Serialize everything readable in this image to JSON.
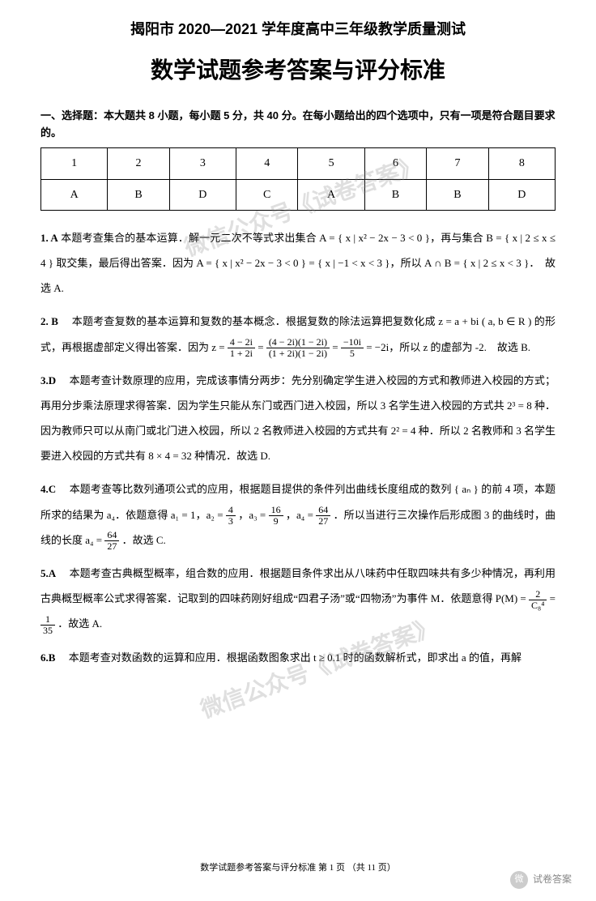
{
  "header": "揭阳市 2020—2021 学年度高中三年级教学质量测试",
  "title": "数学试题参考答案与评分标准",
  "section1_header": "一、选择题：本大题共 8 小题，每小题 5 分，共 40 分。在每小题给出的四个选项中，只有一项是符合题目要求的。",
  "answer_table": {
    "numbers": [
      "1",
      "2",
      "3",
      "4",
      "5",
      "6",
      "7",
      "8"
    ],
    "answers": [
      "A",
      "B",
      "D",
      "C",
      "A",
      "B",
      "B",
      "D"
    ]
  },
  "explanations": {
    "q1": {
      "num": "1. A",
      "body": "本题考查集合的基本运算．解一元二次不等式求出集合 A = { x | x² − 2x − 3 < 0 }，再与集合 B = { x | 2 ≤ x ≤ 4 } 取交集，最后得出答案．因为 A = { x | x² − 2x − 3 < 0 } = { x | −1 < x < 3 }，所以 A ∩ B = { x | 2 ≤ x < 3 }．　故选 A."
    },
    "q2": {
      "num": "2. B",
      "body_pre": "本题考查复数的基本运算和复数的基本概念．根据复数的除法运算把复数化成 z = a + bi ( a, b ∈ R ) 的形式，再根据虚部定义得出答案．因为 z = ",
      "frac1_num": "4 − 2i",
      "frac1_den": "1 + 2i",
      "eq1": " = ",
      "frac2_num": "(4 − 2i)(1 − 2i)",
      "frac2_den": "(1 + 2i)(1 − 2i)",
      "eq2": " = ",
      "frac3_num": "−10i",
      "frac3_den": "5",
      "body_post": " = −2i，所以 z 的虚部为 -2.　故选 B."
    },
    "q3": {
      "num": "3.D",
      "body": "本题考查计数原理的应用，完成该事情分两步：先分别确定学生进入校园的方式和教师进入校园的方式；再用分步乘法原理求得答案．因为学生只能从东门或西门进入校园，所以 3 名学生进入校园的方式共 2³ = 8 种．因为教师只可以从南门或北门进入校园，所以 2 名教师进入校园的方式共有 2² = 4 种．所以 2 名教师和 3 名学生要进入校园的方式共有 8 × 4 = 32 种情况．故选 D."
    },
    "q4": {
      "num": "4.C",
      "body_pre": "本题考查等比数列通项公式的应用，根据题目提供的条件列出曲线长度组成的数列 { aₙ } 的前 4 项，本题所求的结果为 a₄．依题意得 a₁ = 1，a₂ = ",
      "f1_num": "4",
      "f1_den": "3",
      "mid1": "，a₃ = ",
      "f2_num": "16",
      "f2_den": "9",
      "mid2": "，a₄ = ",
      "f3_num": "64",
      "f3_den": "27",
      "mid3": "．所以当进行三次操作后形成图 3 的曲线时，曲线的长度 a₄ = ",
      "f4_num": "64",
      "f4_den": "27",
      "body_post": "．故选 C."
    },
    "q5": {
      "num": "5.A",
      "body_pre": "本题考查古典概型概率，组合数的应用．根据题目条件求出从八味药中任取四味共有多少种情况，再利用古典概型概率公式求得答案．记取到的四味药刚好组成“四君子汤”或“四物汤”为事件 M．依题意得 P(M) = ",
      "f1_num": "2",
      "f1_den": "C₈⁴",
      "mid": " = ",
      "f2_num": "1",
      "f2_den": "35",
      "body_post": "．故选 A."
    },
    "q6": {
      "num": "6.B",
      "body": "本题考查对数函数的运算和应用．根据函数图象求出 t ≥ 0.1 时的函数解析式，即求出 a 的值，再解"
    }
  },
  "watermark_text": "微信公众号《试卷答案》",
  "footer": "数学试题参考答案与评分标准 第 1 页 （共 11 页）",
  "wechat_label": "试卷答案"
}
